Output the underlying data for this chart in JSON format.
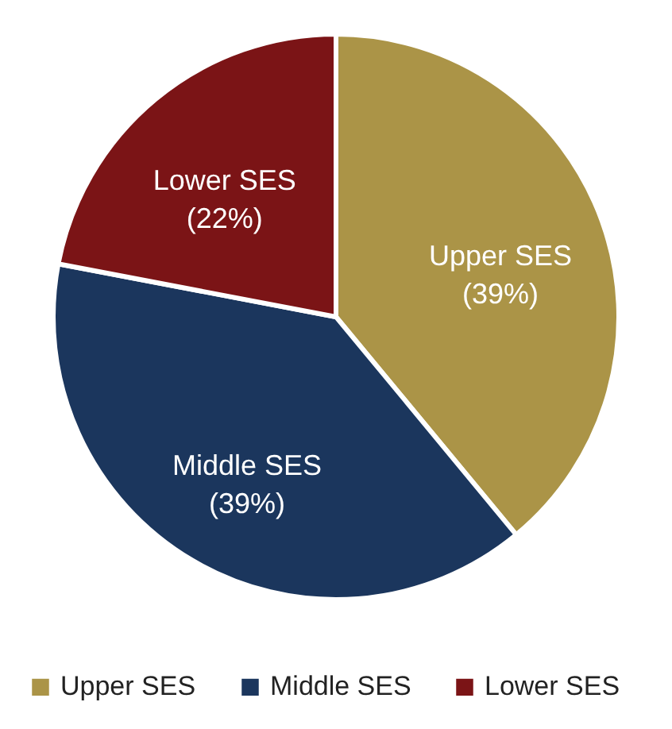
{
  "chart_data": {
    "type": "pie",
    "categories": [
      "Upper SES",
      "Middle SES",
      "Lower SES"
    ],
    "values": [
      39,
      39,
      22
    ],
    "colors": [
      "#ab9447",
      "#1b365d",
      "#7b1416"
    ],
    "value_labels": [
      "(39%)",
      "(39%)",
      "(22%)"
    ],
    "legend": "bottom"
  }
}
